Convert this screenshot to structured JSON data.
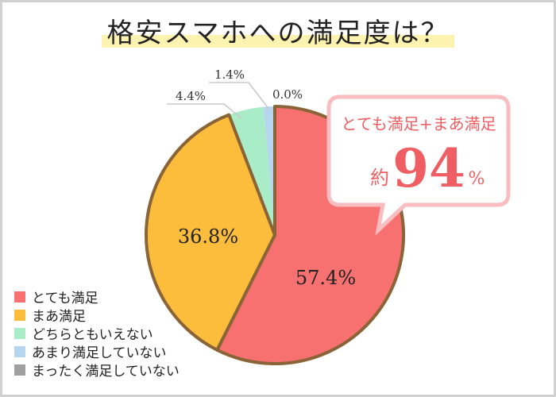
{
  "chart_data": {
    "type": "pie",
    "title": "格安スマホへの満足度は？",
    "categories": [
      "とても満足",
      "まあ満足",
      "どちらともいえない",
      "あまり満足していない",
      "まったく満足していない"
    ],
    "values": [
      57.4,
      36.8,
      4.4,
      1.4,
      0.0
    ],
    "labels": [
      "57.4%",
      "36.8%",
      "4.4%",
      "1.4%",
      "0.0%"
    ],
    "colors": [
      "#f87171",
      "#fbbd3b",
      "#a8ecc8",
      "#b6d6ef",
      "#a0a0a0"
    ],
    "legend_position": "bottom-left",
    "annotation": {
      "line1": "とても満足+まあ満足",
      "prefix": "約",
      "value": "94",
      "suffix": "%"
    }
  }
}
